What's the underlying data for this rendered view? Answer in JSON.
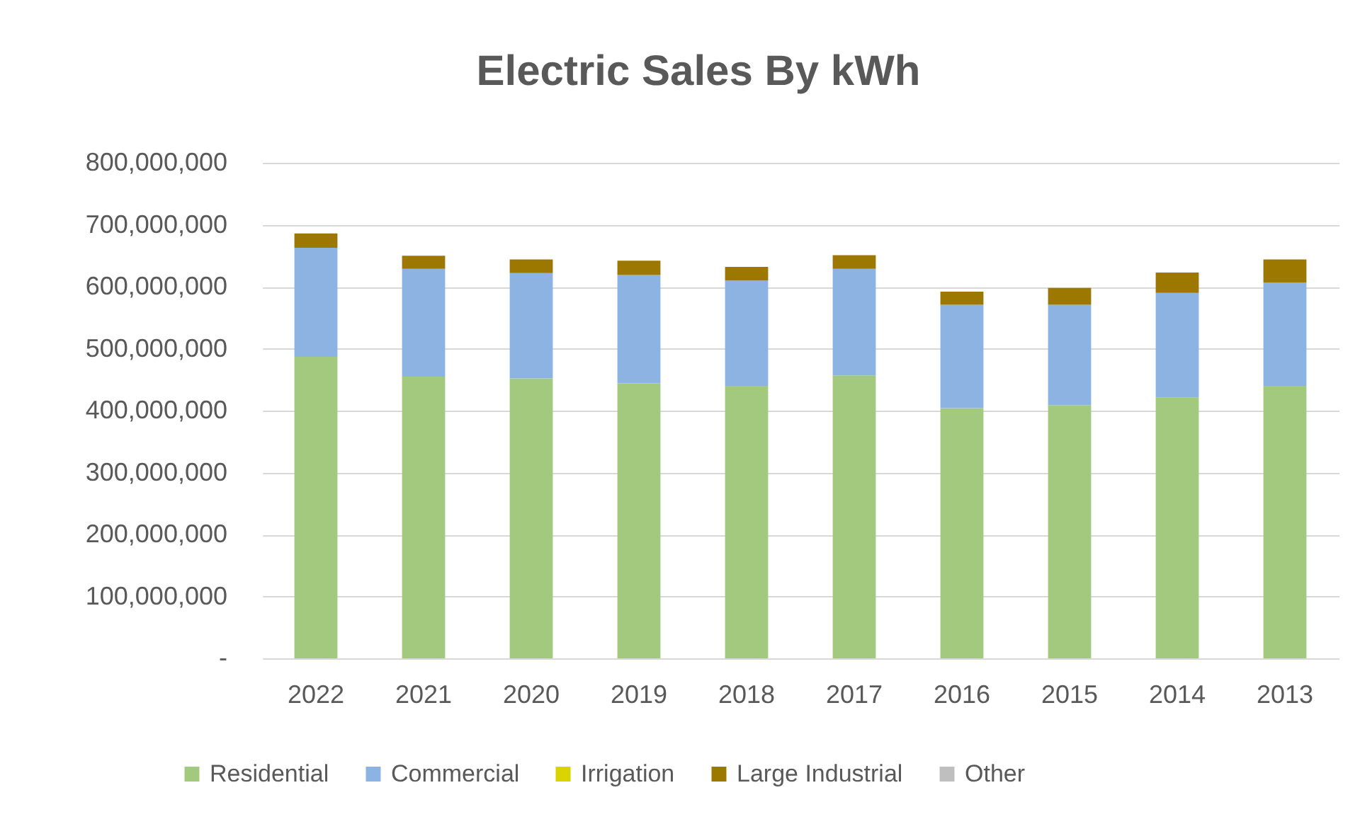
{
  "chart_data": {
    "type": "bar",
    "title": "Electric Sales By kWh",
    "categories": [
      "2022",
      "2021",
      "2020",
      "2019",
      "2018",
      "2017",
      "2016",
      "2015",
      "2014",
      "2013"
    ],
    "stacked": true,
    "series": [
      {
        "name": "Residential",
        "color": "#a3c97f",
        "values": [
          487000000,
          455000000,
          452000000,
          444000000,
          440000000,
          457000000,
          404000000,
          409000000,
          421000000,
          440000000
        ]
      },
      {
        "name": "Commercial",
        "color": "#8db3e2",
        "values": [
          176000000,
          174000000,
          170000000,
          175000000,
          170000000,
          172000000,
          167000000,
          162000000,
          169000000,
          167000000
        ]
      },
      {
        "name": "Irrigation",
        "color": "#d9d400",
        "values": [
          null,
          null,
          null,
          null,
          null,
          null,
          null,
          null,
          null,
          null
        ]
      },
      {
        "name": "Large Industrial",
        "color": "#9c7800",
        "values": [
          23000000,
          21000000,
          22000000,
          23000000,
          22000000,
          22000000,
          21000000,
          27000000,
          33000000,
          37000000
        ]
      },
      {
        "name": "Other",
        "color": "#bfbfbf",
        "values": [
          null,
          null,
          null,
          null,
          null,
          null,
          null,
          null,
          null,
          null
        ]
      }
    ],
    "ylim": [
      0,
      800000000
    ],
    "yticks": [
      {
        "value": 0,
        "label": "-"
      },
      {
        "value": 100000000,
        "label": "100,000,000"
      },
      {
        "value": 200000000,
        "label": "200,000,000"
      },
      {
        "value": 300000000,
        "label": "300,000,000"
      },
      {
        "value": 400000000,
        "label": "400,000,000"
      },
      {
        "value": 500000000,
        "label": "500,000,000"
      },
      {
        "value": 600000000,
        "label": "600,000,000"
      },
      {
        "value": 700000000,
        "label": "700,000,000"
      },
      {
        "value": 800000000,
        "label": "800,000,000"
      }
    ],
    "grid": "y",
    "legend": "bottom"
  }
}
